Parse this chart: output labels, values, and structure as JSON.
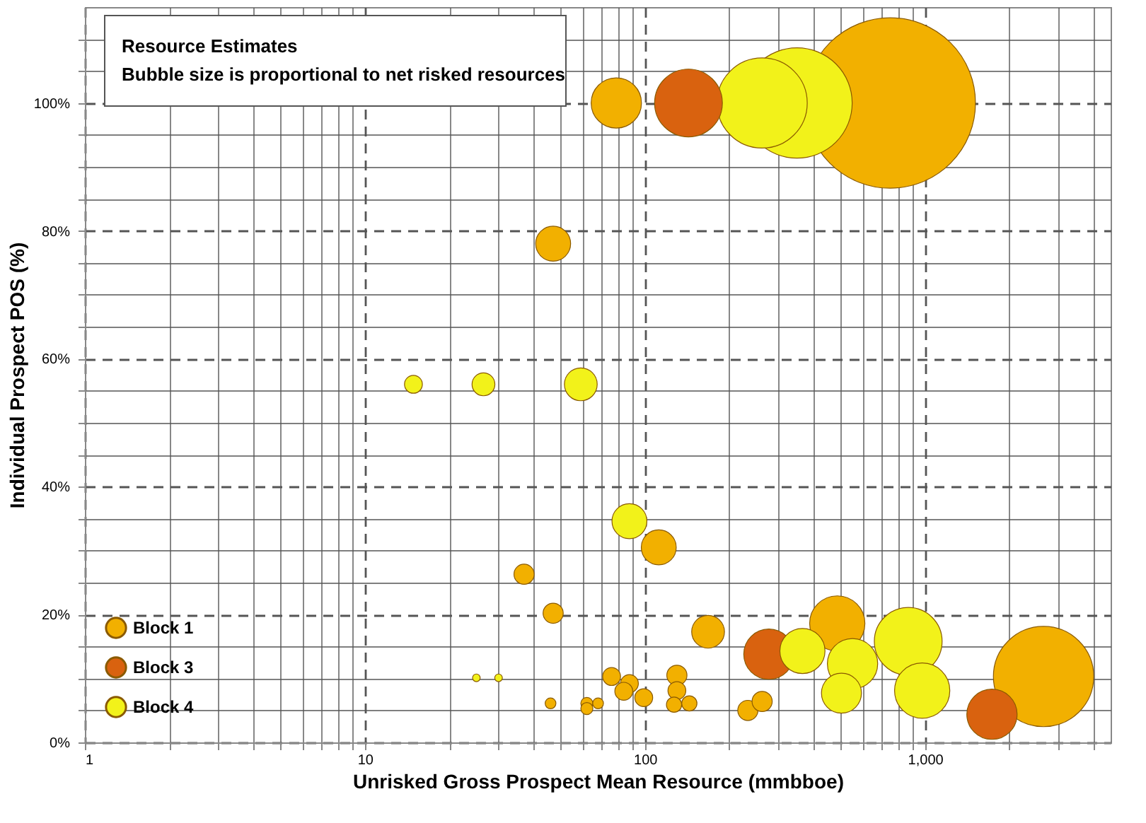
{
  "chart_data": {
    "type": "bubble",
    "title": "Resource Estimates",
    "subtitle": "Bubble size is proportional to net risked resources",
    "xlabel": "Unrisked Gross Prospect Mean Resource (mmbboe)",
    "ylabel": "Individual Prospect POS (%)",
    "log": "x",
    "grid": true,
    "legend": "bottom left",
    "xlim": [
      1,
      4600
    ],
    "ylim": [
      0,
      115
    ],
    "xticks": [
      1,
      {
        "value": 2,
        "label": null
      },
      {
        "value": 3,
        "label": null
      },
      {
        "value": 4,
        "label": null
      },
      {
        "value": 5,
        "label": null
      },
      {
        "value": 6,
        "label": null
      },
      {
        "value": 7,
        "label": null
      },
      {
        "value": 8,
        "label": null
      },
      {
        "value": 9,
        "label": null
      },
      10,
      {
        "value": 20,
        "label": null
      },
      {
        "value": 30,
        "label": null
      },
      {
        "value": 40,
        "label": null
      },
      {
        "value": 50,
        "label": null
      },
      {
        "value": 60,
        "label": null
      },
      {
        "value": 70,
        "label": null
      },
      {
        "value": 80,
        "label": null
      },
      {
        "value": 90,
        "label": null
      },
      100,
      {
        "value": 200,
        "label": null
      },
      {
        "value": 300,
        "label": null
      },
      {
        "value": 400,
        "label": null
      },
      {
        "value": 500,
        "label": null
      },
      {
        "value": 600,
        "label": null
      },
      {
        "value": 700,
        "label": null
      },
      {
        "value": 800,
        "label": null
      },
      {
        "value": 900,
        "label": null
      },
      {
        "value": 1000,
        "label": "1,000"
      },
      {
        "value": 2000,
        "label": null
      },
      {
        "value": 3000,
        "label": null
      },
      {
        "value": 4000,
        "label": null
      }
    ],
    "yticks": [
      {
        "value": 0,
        "label": "0%"
      },
      {
        "value": 5,
        "label": null
      },
      {
        "value": 10,
        "label": null
      },
      {
        "value": 15,
        "label": null
      },
      {
        "value": 20,
        "label": "20%"
      },
      {
        "value": 25,
        "label": null
      },
      {
        "value": 30,
        "label": null
      },
      {
        "value": 35,
        "label": null
      },
      {
        "value": 40,
        "label": "40%"
      },
      {
        "value": 45,
        "label": null
      },
      {
        "value": 50,
        "label": null
      },
      {
        "value": 55,
        "label": null
      },
      {
        "value": 60,
        "label": "60%"
      },
      {
        "value": 65,
        "label": null
      },
      {
        "value": 70,
        "label": null
      },
      {
        "value": 75,
        "label": null
      },
      {
        "value": 80,
        "label": "80%"
      },
      {
        "value": 85,
        "label": null
      },
      {
        "value": 90,
        "label": null
      },
      {
        "value": 95,
        "label": null
      },
      {
        "value": 100,
        "label": "100%"
      },
      {
        "value": 105,
        "label": null
      },
      {
        "value": 110,
        "label": null
      }
    ],
    "series": [
      {
        "name": "Block 1",
        "color": "#f2b000",
        "x": [
          79,
          751,
          47,
          112,
          37,
          47,
          168,
          486,
          2650,
          76,
          88,
          84,
          99,
          130,
          130,
          127,
          144,
          233,
          262,
          46,
          62,
          62,
          68
        ],
        "values": [
          100,
          100,
          78,
          30.5,
          26.3,
          20.2,
          17.3,
          18.6,
          10.3,
          10.3,
          9.2,
          8,
          7,
          10.5,
          8.1,
          5.9,
          6.1,
          5,
          6.4,
          6.1,
          6.1,
          5.3,
          6.1
        ],
        "sizes": [
          0.087,
          1,
          0.042,
          0.042,
          0.014,
          0.014,
          0.037,
          0.105,
          0.346,
          0.011,
          0.011,
          0.011,
          0.011,
          0.014,
          0.011,
          0.008,
          0.008,
          0.014,
          0.014,
          0.004,
          0.005,
          0.005,
          0.004
        ]
      },
      {
        "name": "Block 3",
        "color": "#d9620f",
        "x": [
          143,
          277,
          1734
        ],
        "values": [
          100,
          13.8,
          4.4
        ],
        "sizes": [
          0.158,
          0.087,
          0.087
        ]
      },
      {
        "name": "Block 4",
        "color": "#f2f21a",
        "x": [
          262,
          349,
          14.9,
          26.5,
          59,
          88,
          365,
          551,
          503,
          871,
          977,
          25,
          30
        ],
        "values": [
          100,
          100,
          56,
          56,
          56,
          34.6,
          14.3,
          12.3,
          7.7,
          15.8,
          8.1,
          10.1,
          10.1
        ],
        "sizes": [
          0.28,
          0.419,
          0.011,
          0.018,
          0.037,
          0.042,
          0.07,
          0.087,
          0.055,
          0.158,
          0.105,
          0.002,
          0.002
        ]
      }
    ]
  }
}
